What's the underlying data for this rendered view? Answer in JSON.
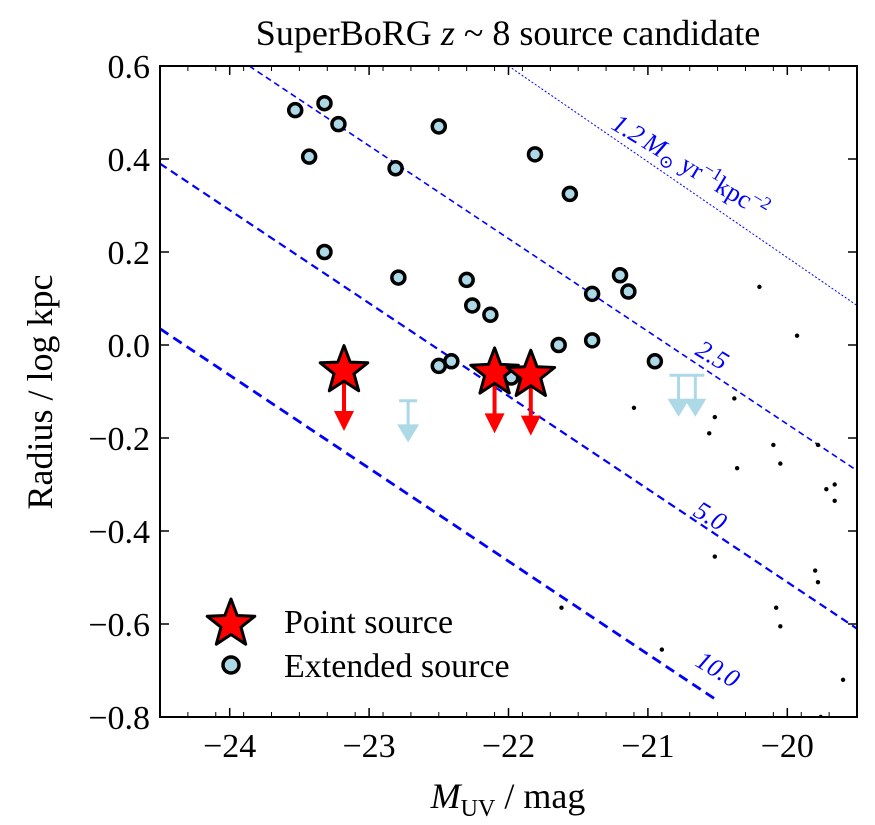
{
  "chart_data": {
    "type": "scatter",
    "title_parts": [
      "SuperBoRG ",
      "z",
      " ~ ",
      "8",
      " source candidate"
    ],
    "xlabel_parts": [
      "M",
      "UV",
      " / mag"
    ],
    "ylabel": "Radius / log kpc",
    "xlim": [
      -24.5,
      -19.5
    ],
    "ylim": [
      -0.8,
      0.6
    ],
    "xticks": [
      -24,
      -23,
      -22,
      -21,
      -20
    ],
    "xtick_labels": [
      "−24",
      "−23",
      "−22",
      "−21",
      "−20"
    ],
    "yticks": [
      0.6,
      0.4,
      0.2,
      0.0,
      -0.2,
      -0.4,
      -0.6,
      -0.8
    ],
    "ytick_labels": [
      "0.6",
      "0.4",
      "0.2",
      "0.0",
      "−0.2",
      "−0.4",
      "−0.6",
      "−0.8"
    ],
    "colors": {
      "point": "#ff0000",
      "extended_fill": "#add8e6",
      "upper_limit": "#add8e6",
      "lines": "#0000ff",
      "background_points": "#000000"
    },
    "series": [
      {
        "name": "Point source",
        "marker": "star",
        "upper_limit": true,
        "points": [
          {
            "x": -23.18,
            "y": -0.055
          },
          {
            "x": -22.1,
            "y": -0.06
          },
          {
            "x": -21.84,
            "y": -0.065
          }
        ]
      },
      {
        "name": "Extended source",
        "marker": "circle",
        "points": [
          {
            "x": -23.53,
            "y": 0.505
          },
          {
            "x": -23.32,
            "y": 0.52
          },
          {
            "x": -23.22,
            "y": 0.475
          },
          {
            "x": -23.43,
            "y": 0.405
          },
          {
            "x": -22.5,
            "y": 0.47
          },
          {
            "x": -21.81,
            "y": 0.41
          },
          {
            "x": -22.81,
            "y": 0.38
          },
          {
            "x": -21.56,
            "y": 0.325
          },
          {
            "x": -23.32,
            "y": 0.2
          },
          {
            "x": -22.79,
            "y": 0.145
          },
          {
            "x": -22.3,
            "y": 0.14
          },
          {
            "x": -22.26,
            "y": 0.085
          },
          {
            "x": -22.13,
            "y": 0.065
          },
          {
            "x": -21.2,
            "y": 0.15
          },
          {
            "x": -21.14,
            "y": 0.115
          },
          {
            "x": -21.4,
            "y": 0.11
          },
          {
            "x": -21.4,
            "y": 0.01
          },
          {
            "x": -21.64,
            "y": 0.0
          },
          {
            "x": -20.95,
            "y": -0.035
          },
          {
            "x": -22.5,
            "y": -0.045
          },
          {
            "x": -22.41,
            "y": -0.035
          },
          {
            "x": -21.98,
            "y": -0.07
          }
        ]
      },
      {
        "name": "Extended upper limits",
        "marker": "arrow",
        "points": [
          {
            "x": -22.72,
            "y": -0.12
          },
          {
            "x": -20.78,
            "y": -0.065
          },
          {
            "x": -20.66,
            "y": -0.065
          }
        ]
      },
      {
        "name": "Background sample",
        "marker": "dot",
        "points": [
          {
            "x": -20.2,
            "y": 0.125
          },
          {
            "x": -19.93,
            "y": 0.02
          },
          {
            "x": -21.1,
            "y": -0.135
          },
          {
            "x": -20.38,
            "y": -0.115
          },
          {
            "x": -20.52,
            "y": -0.155
          },
          {
            "x": -20.56,
            "y": -0.19
          },
          {
            "x": -20.1,
            "y": -0.215
          },
          {
            "x": -19.78,
            "y": -0.215
          },
          {
            "x": -20.36,
            "y": -0.265
          },
          {
            "x": -20.05,
            "y": -0.255
          },
          {
            "x": -19.72,
            "y": -0.31
          },
          {
            "x": -19.66,
            "y": -0.3
          },
          {
            "x": -19.66,
            "y": -0.335
          },
          {
            "x": -20.52,
            "y": -0.455
          },
          {
            "x": -19.8,
            "y": -0.485
          },
          {
            "x": -19.78,
            "y": -0.51
          },
          {
            "x": -21.62,
            "y": -0.565
          },
          {
            "x": -20.08,
            "y": -0.565
          },
          {
            "x": -20.05,
            "y": -0.605
          },
          {
            "x": -20.9,
            "y": -0.655
          },
          {
            "x": -19.6,
            "y": -0.72
          },
          {
            "x": -19.76,
            "y": -0.8
          }
        ]
      }
    ],
    "sfr_lines": [
      {
        "label": "2.5",
        "x": [
          -23.86,
          -19.5
        ],
        "y": [
          0.6,
          -0.27
        ],
        "style": "dashed"
      },
      {
        "label": "5.0",
        "x": [
          -24.5,
          -19.5
        ],
        "y": [
          0.39,
          -0.61
        ],
        "style": "dashed"
      },
      {
        "label": "10.0",
        "x": [
          -24.5,
          -20.5
        ],
        "y": [
          0.035,
          -0.765
        ],
        "style": "dashed"
      },
      {
        "label": "1.2",
        "x": [
          -22.0,
          -19.5
        ],
        "y": [
          0.6,
          0.085
        ],
        "style": "dotted"
      }
    ],
    "line_labels": {
      "sfr_12_value": "1.2",
      "sfr_12_msun": "M",
      "sfr_12_sun_sub": "⊙",
      "sfr_12_yr": " yr",
      "sfr_12_yr_exp": "−1",
      "sfr_12_kpc": "kpc",
      "sfr_12_kpc_exp": "−2",
      "l25": "2.5",
      "l50": "5.0",
      "l100": "10.0"
    },
    "legend": {
      "position": "lower-left",
      "entries": [
        "Point source",
        "Extended source"
      ]
    }
  }
}
